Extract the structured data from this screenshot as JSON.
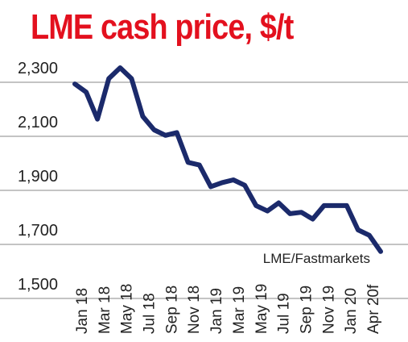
{
  "chart_data": {
    "type": "line",
    "title": "LME cash price, $/t",
    "xlabel": "",
    "ylabel": "",
    "source": "LME/Fastmarkets",
    "ylim": [
      1500,
      2300
    ],
    "yticks": [
      "2,300",
      "2,100",
      "1,900",
      "1,700",
      "1,500"
    ],
    "ytick_values": [
      2300,
      2100,
      1900,
      1700,
      1500
    ],
    "grid": "horizontal",
    "legend": "none",
    "line_color": "#1b2a6b",
    "title_color": "#e3101e",
    "categories": [
      "Jan 18",
      "Mar 18",
      "May 18",
      "Jul 18",
      "Sep 18",
      "Nov 18",
      "Jan 19",
      "Mar 19",
      "May 19",
      "Jul 19",
      "Sep 19",
      "Nov 19",
      "Jan 20",
      "Apr 20f"
    ],
    "x": [
      "Jan 18",
      "Feb 18",
      "Mar 18",
      "Apr 18",
      "May 18",
      "Jun 18",
      "Jul 18",
      "Aug 18",
      "Sep 18",
      "Oct 18",
      "Nov 18",
      "Dec 18",
      "Jan 19",
      "Feb 19",
      "Mar 19",
      "Apr 19",
      "May 19",
      "Jun 19",
      "Jul 19",
      "Aug 19",
      "Sep 19",
      "Oct 19",
      "Nov 19",
      "Dec 19",
      "Jan 20",
      "Feb 20",
      "Mar 20",
      "Apr 20f"
    ],
    "values": [
      2240,
      2210,
      2110,
      2260,
      2300,
      2260,
      2120,
      2070,
      2050,
      2060,
      1950,
      1940,
      1860,
      1875,
      1885,
      1865,
      1790,
      1770,
      1800,
      1760,
      1765,
      1740,
      1790,
      1790,
      1790,
      1700,
      1680,
      1620
    ]
  }
}
